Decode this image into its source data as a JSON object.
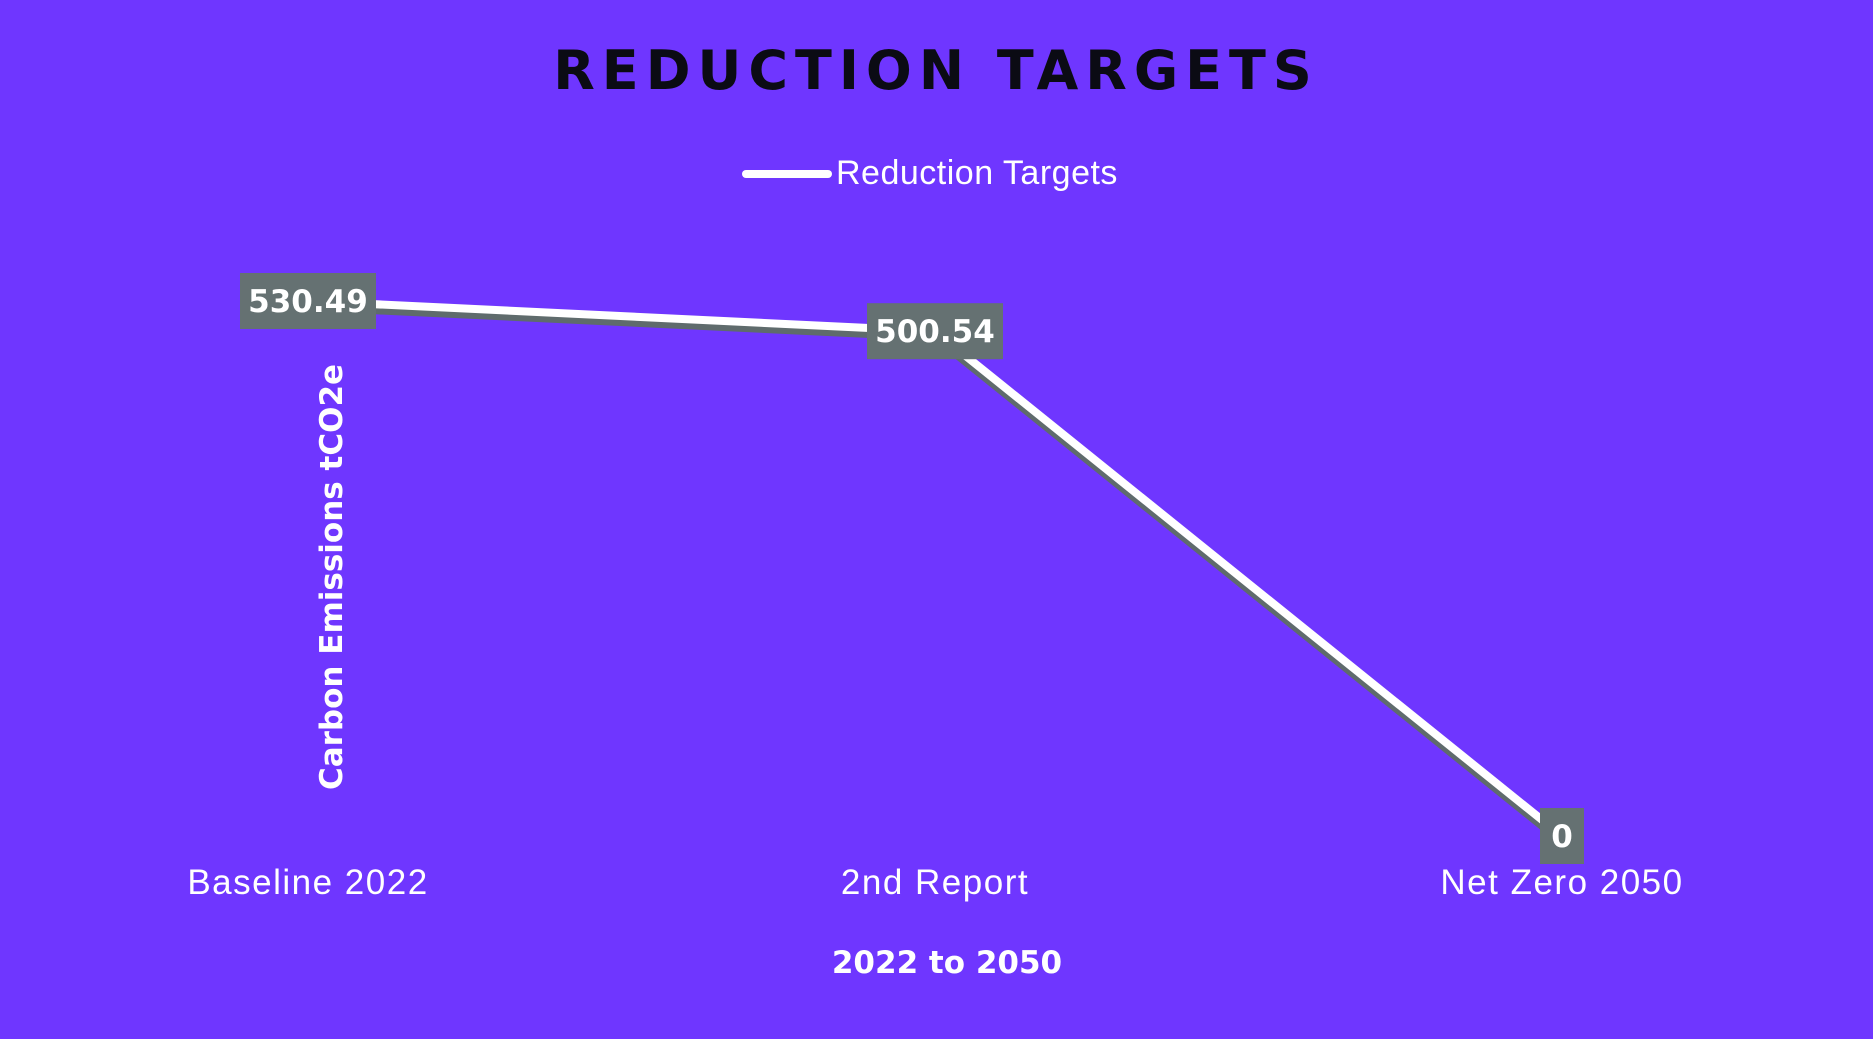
{
  "colors": {
    "background": "#6f36ff",
    "series_line": "#ffffff",
    "series_shadow": "#5f6b6c",
    "data_label_box": "#657172",
    "title_text": "#0b0b14"
  },
  "chart_data": {
    "type": "line",
    "title": "REDUCTION TARGETS",
    "xlabel": "2022 to 2050",
    "ylabel": "Carbon Emissions tCO2e",
    "categories": [
      "Baseline 2022",
      "2nd Report",
      "Net Zero 2050"
    ],
    "series": [
      {
        "name": "Reduction Targets",
        "values": [
          530.49,
          500.54,
          0
        ],
        "labels": [
          "530.49",
          "500.54",
          "0"
        ]
      }
    ],
    "ylim": [
      0,
      530.49
    ],
    "legend_position": "top-center",
    "grid": false,
    "drop_lines": true
  }
}
